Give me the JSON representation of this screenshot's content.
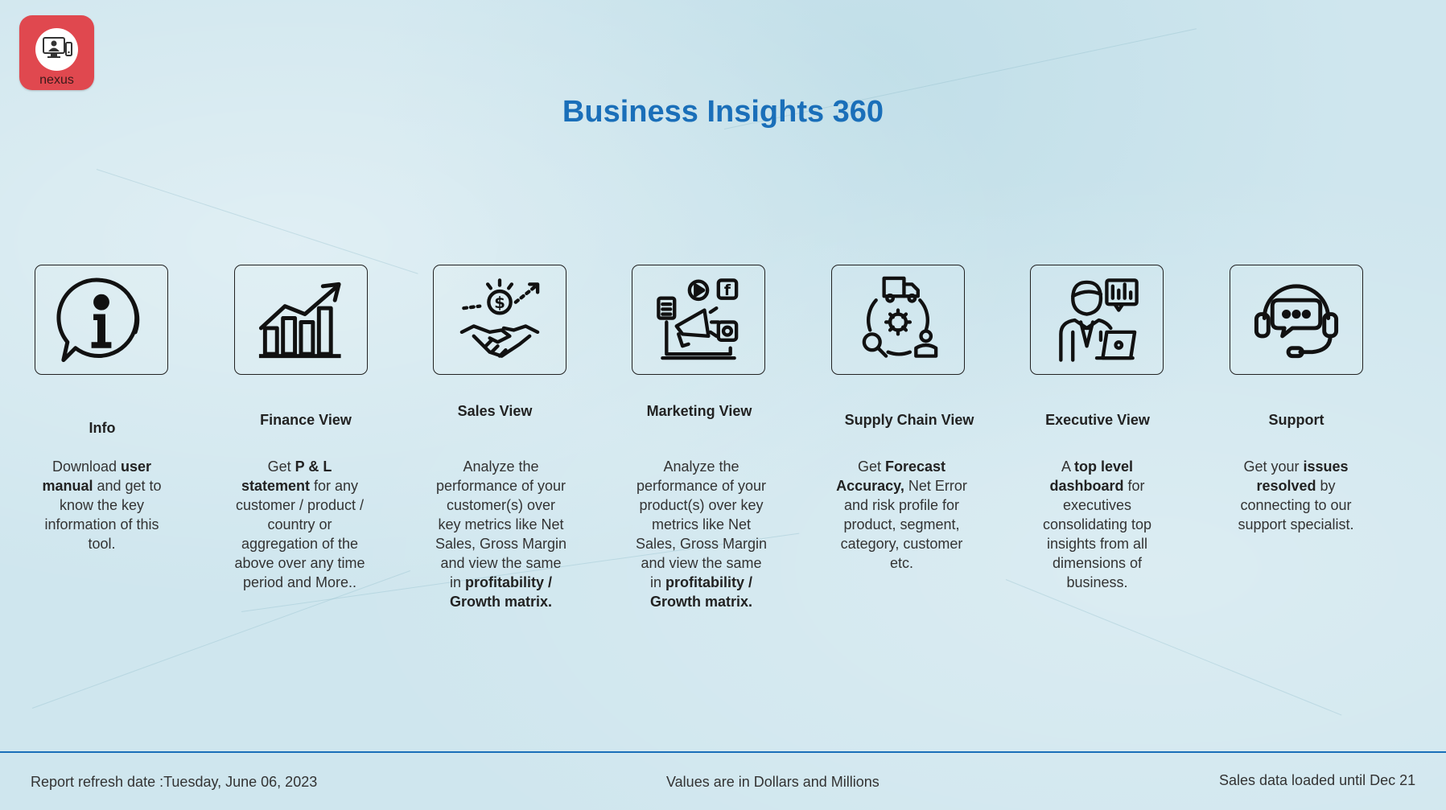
{
  "logo": {
    "brand": "nexus"
  },
  "title": "Business Insights 360",
  "colors": {
    "title": "#1a6fb9",
    "logo_bg": "#e0484f",
    "divider": "#1a6fb9"
  },
  "cards": [
    {
      "title": "Info",
      "icon": "info-speech-icon",
      "desc": [
        [
          "Download ",
          false
        ],
        [
          "user manual",
          true
        ],
        [
          " and get to know the key information of this tool.",
          false
        ]
      ]
    },
    {
      "title": "Finance View",
      "icon": "bar-growth-chart-icon",
      "desc": [
        [
          "Get  ",
          false
        ],
        [
          "P & L statement",
          true
        ],
        [
          " for any customer / product / country or aggregation of the above over any time period and More..",
          false
        ]
      ]
    },
    {
      "title": "Sales View",
      "icon": "handshake-dollar-icon",
      "desc": [
        [
          "Analyze the performance of your customer(s) over key metrics like Net Sales, Gross Margin and view the same in ",
          false
        ],
        [
          "profitability / Growth matrix.",
          true
        ]
      ]
    },
    {
      "title": "Marketing View",
      "icon": "megaphone-social-icon",
      "desc": [
        [
          "Analyze the performance of your product(s) over key metrics like Net Sales, Gross Margin and view the same in ",
          false
        ],
        [
          "profitability / Growth matrix.",
          true
        ]
      ]
    },
    {
      "title": "Supply Chain View",
      "icon": "supply-chain-truck-gear-icon",
      "desc": [
        [
          "Get ",
          false
        ],
        [
          "Forecast Accuracy,",
          true
        ],
        [
          " Net Error and risk profile for product, segment, category, customer etc.",
          false
        ]
      ]
    },
    {
      "title": "Executive View",
      "icon": "executive-dashboard-icon",
      "desc": [
        [
          "A ",
          false
        ],
        [
          "top level dashboard",
          true
        ],
        [
          " for executives consolidating top insights from all dimensions of business.",
          false
        ]
      ]
    },
    {
      "title": "Support",
      "icon": "headset-support-icon",
      "desc": [
        [
          "Get your ",
          false
        ],
        [
          "issues resolved",
          true
        ],
        [
          " by connecting to our support specialist.",
          false
        ]
      ]
    }
  ],
  "footer": {
    "refresh_label": "Report refresh date :",
    "refresh_date": "Tuesday, June 06, 2023",
    "units_note": "Values are in Dollars and Millions",
    "data_loaded": "Sales data loaded until Dec 21"
  }
}
